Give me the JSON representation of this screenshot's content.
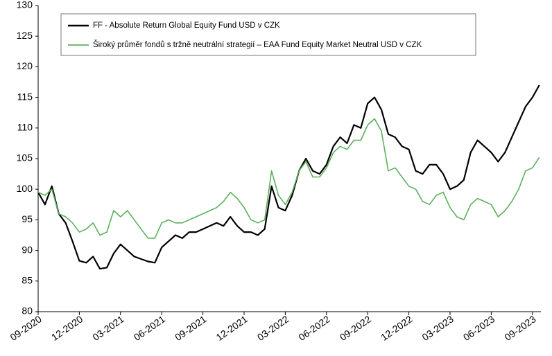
{
  "chart_data": {
    "type": "line",
    "categories": [
      "09-2020",
      null,
      null,
      null,
      null,
      null,
      "12-2020",
      null,
      null,
      null,
      null,
      null,
      "03-2021",
      null,
      null,
      null,
      null,
      null,
      "06-2021",
      null,
      null,
      null,
      null,
      null,
      "09-2021",
      null,
      null,
      null,
      null,
      null,
      "12-2021",
      null,
      null,
      null,
      null,
      null,
      "03-2022",
      null,
      null,
      null,
      null,
      null,
      "06-2022",
      null,
      null,
      null,
      null,
      null,
      "09-2022",
      null,
      null,
      null,
      null,
      null,
      "12-2022",
      null,
      null,
      null,
      null,
      null,
      "03-2023",
      null,
      null,
      null,
      null,
      null,
      "06-2023",
      null,
      null,
      null,
      null,
      null,
      "09-2023",
      null
    ],
    "series": [
      {
        "name": "FF - Absolute Return Global Equity Fund USD v CZK",
        "color": "#000000",
        "values": [
          99.5,
          97.5,
          100.5,
          96,
          94.5,
          91.5,
          88.3,
          88,
          89,
          87,
          87.2,
          89.5,
          91,
          90,
          89,
          88.6,
          88.2,
          88,
          90.5,
          91.5,
          92.5,
          92,
          93,
          93,
          93.5,
          94,
          94.5,
          94,
          95.5,
          94,
          93,
          93,
          92.5,
          93.5,
          100.5,
          97,
          96.5,
          99,
          103,
          105,
          103,
          102.5,
          104,
          107,
          108.5,
          107.5,
          110.5,
          110,
          114,
          115,
          113,
          109,
          108.5,
          107,
          106.5,
          103,
          102.5,
          104,
          104,
          102.5,
          100,
          100.5,
          101.5,
          106,
          108,
          107,
          106,
          104.5,
          106,
          108.5,
          111,
          113.5,
          115,
          117
        ]
      },
      {
        "name": "Široký průměr fondů s tržně neutrální strategií – EAA Fund Equity Market Neutral USD v CZK",
        "color": "#5cb05c",
        "values": [
          99.5,
          99,
          100,
          96,
          95.5,
          94.5,
          93,
          93.5,
          94.5,
          92.5,
          93,
          96.5,
          95.5,
          96.5,
          95,
          93.5,
          92,
          92,
          94.5,
          95,
          94.5,
          94.5,
          95,
          95.5,
          96,
          96.5,
          97,
          98,
          99.5,
          98.5,
          97,
          95,
          94.5,
          95,
          103,
          99,
          97.5,
          99.5,
          103,
          104.5,
          102,
          102,
          103.5,
          106,
          107,
          106.5,
          108,
          108,
          110.5,
          111.5,
          109.5,
          103,
          103.5,
          102,
          100.5,
          100,
          98,
          97.5,
          99,
          99.5,
          97,
          95.5,
          95,
          97.5,
          98.5,
          98,
          97.5,
          95.5,
          96.5,
          98,
          100,
          103,
          103.5,
          105.2
        ]
      }
    ],
    "ylim": [
      80,
      130
    ],
    "yticks": [
      80,
      85,
      90,
      95,
      100,
      105,
      110,
      115,
      120,
      125,
      130
    ],
    "grid": false
  }
}
